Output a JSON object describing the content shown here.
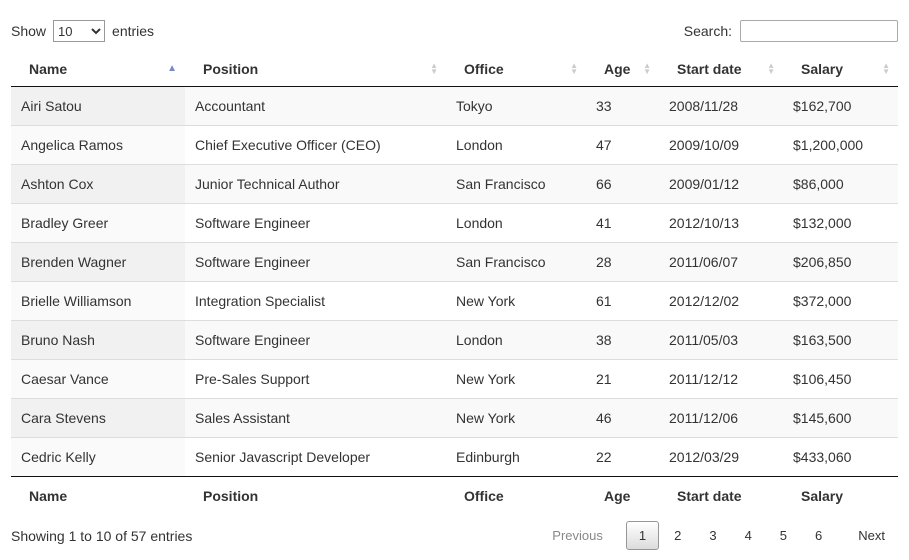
{
  "controls": {
    "show_label": "Show",
    "entries_label": "entries",
    "page_length_value": "10",
    "search_label": "Search:",
    "search_value": "",
    "search_placeholder": ""
  },
  "table": {
    "column_keys": [
      "name",
      "position",
      "office",
      "age",
      "start-date",
      "salary"
    ],
    "columns": [
      {
        "label": "Name",
        "sorted": "asc"
      },
      {
        "label": "Position",
        "sorted": "none"
      },
      {
        "label": "Office",
        "sorted": "none"
      },
      {
        "label": "Age",
        "sorted": "none"
      },
      {
        "label": "Start date",
        "sorted": "none"
      },
      {
        "label": "Salary",
        "sorted": "none"
      }
    ],
    "rows": [
      [
        "Airi Satou",
        "Accountant",
        "Tokyo",
        "33",
        "2008/11/28",
        "$162,700"
      ],
      [
        "Angelica Ramos",
        "Chief Executive Officer (CEO)",
        "London",
        "47",
        "2009/10/09",
        "$1,200,000"
      ],
      [
        "Ashton Cox",
        "Junior Technical Author",
        "San Francisco",
        "66",
        "2009/01/12",
        "$86,000"
      ],
      [
        "Bradley Greer",
        "Software Engineer",
        "London",
        "41",
        "2012/10/13",
        "$132,000"
      ],
      [
        "Brenden Wagner",
        "Software Engineer",
        "San Francisco",
        "28",
        "2011/06/07",
        "$206,850"
      ],
      [
        "Brielle Williamson",
        "Integration Specialist",
        "New York",
        "61",
        "2012/12/02",
        "$372,000"
      ],
      [
        "Bruno Nash",
        "Software Engineer",
        "London",
        "38",
        "2011/05/03",
        "$163,500"
      ],
      [
        "Caesar Vance",
        "Pre-Sales Support",
        "New York",
        "21",
        "2011/12/12",
        "$106,450"
      ],
      [
        "Cara Stevens",
        "Sales Assistant",
        "New York",
        "46",
        "2011/12/06",
        "$145,600"
      ],
      [
        "Cedric Kelly",
        "Senior Javascript Developer",
        "Edinburgh",
        "22",
        "2012/03/29",
        "$433,060"
      ]
    ],
    "footer_columns": [
      "Name",
      "Position",
      "Office",
      "Age",
      "Start date",
      "Salary"
    ]
  },
  "info_text": "Showing 1 to 10 of 57 entries",
  "pagination": {
    "previous_label": "Previous",
    "pages": [
      "1",
      "2",
      "3",
      "4",
      "5",
      "6"
    ],
    "current_page": "1",
    "next_label": "Next"
  },
  "colors": {
    "sort_asc_arrow": "#7b88c9",
    "sort_idle_arrow": "#cccccc",
    "odd_row_bg": "#f9f9f9",
    "odd_sorted_cell_bg": "#f1f1f1",
    "even_sorted_cell_bg": "#fafafa",
    "dark_divider": "#111111",
    "row_divider": "#dddddd",
    "current_page_border": "#979797"
  }
}
